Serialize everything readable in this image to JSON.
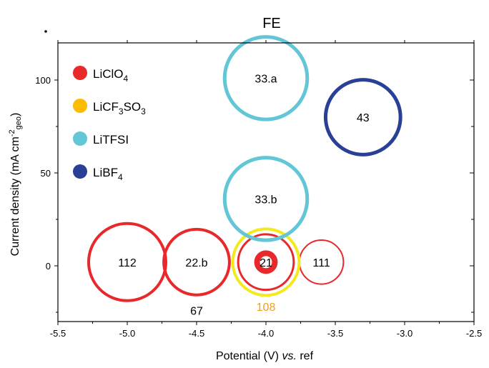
{
  "chart_data": {
    "type": "scatter",
    "title": "FE",
    "xlabel": "Potential (V) vs. ref",
    "xlabel_main": "Potential (V) ",
    "xlabel_italic": "vs.",
    "xlabel_tail": " ref",
    "ylabel": "Current density (mA cm-2geo)",
    "ylabel_main": "Current density (mA cm",
    "ylabel_sup": "-2",
    "ylabel_sub": "geo",
    "ylabel_close": ")",
    "xlim": [
      -5.5,
      -2.5
    ],
    "ylim": [
      -30,
      120
    ],
    "xticks": [
      -5.5,
      -5.0,
      -4.5,
      -4.0,
      -3.5,
      -3.0,
      -2.5
    ],
    "xtick_labels": [
      "-5.5",
      "-5.0",
      "-4.5",
      "-4.0",
      "-3.5",
      "-3.0",
      "-2.5"
    ],
    "yticks": [
      0,
      50,
      100
    ],
    "ytick_labels": [
      "0",
      "50",
      "100"
    ],
    "legend_placement": "top-left",
    "series": [
      {
        "name": "LiClO4",
        "legend_main": "LiClO",
        "legend_sub": "4",
        "legend_tail": "",
        "color": "#e8282a",
        "points": [
          {
            "x": -5.0,
            "y": 2,
            "label": "112",
            "size": 1.0,
            "stroke": 4
          },
          {
            "x": -4.5,
            "y": 2,
            "label": "22.b",
            "size": 0.85,
            "stroke": 4
          },
          {
            "x": -4.0,
            "y": 2,
            "label": "21",
            "size": 0.72,
            "stroke": 3
          },
          {
            "x": -4.0,
            "y": 2,
            "label": "",
            "size": 0.23,
            "stroke": 8
          },
          {
            "x": -3.6,
            "y": 2,
            "label": "111",
            "size": 0.57,
            "stroke": 2
          }
        ]
      },
      {
        "name": "LiCF3SO3",
        "legend_main": "LiCF",
        "legend_sub": "3",
        "legend_tail": "SO",
        "legend_sub2": "3",
        "color": "#fabb00",
        "ring_color": "#f2ea1c",
        "points": [
          {
            "x": -4.0,
            "y": 2,
            "label": "",
            "size": 0.86,
            "stroke": 4
          }
        ]
      },
      {
        "name": "LiTFSI",
        "legend_main": "LiTFSI",
        "legend_sub": "",
        "legend_tail": "",
        "color": "#62c6d6",
        "points": [
          {
            "x": -4.0,
            "y": 101,
            "label": "33.a",
            "size": 1.07,
            "stroke": 5
          },
          {
            "x": -4.0,
            "y": 36,
            "label": "33.b",
            "size": 1.07,
            "stroke": 5
          }
        ]
      },
      {
        "name": "LiBF4",
        "legend_main": "LiBF",
        "legend_sub": "4",
        "legend_tail": "",
        "color": "#2a3f96",
        "points": [
          {
            "x": -3.3,
            "y": 80,
            "label": "43",
            "size": 0.97,
            "stroke": 5
          }
        ]
      }
    ],
    "annotations": [
      {
        "x": -4.5,
        "y": -24,
        "text": "67",
        "color": "#000000"
      },
      {
        "x": -4.0,
        "y": -22,
        "text": "108",
        "color": "#f0a020"
      }
    ]
  }
}
